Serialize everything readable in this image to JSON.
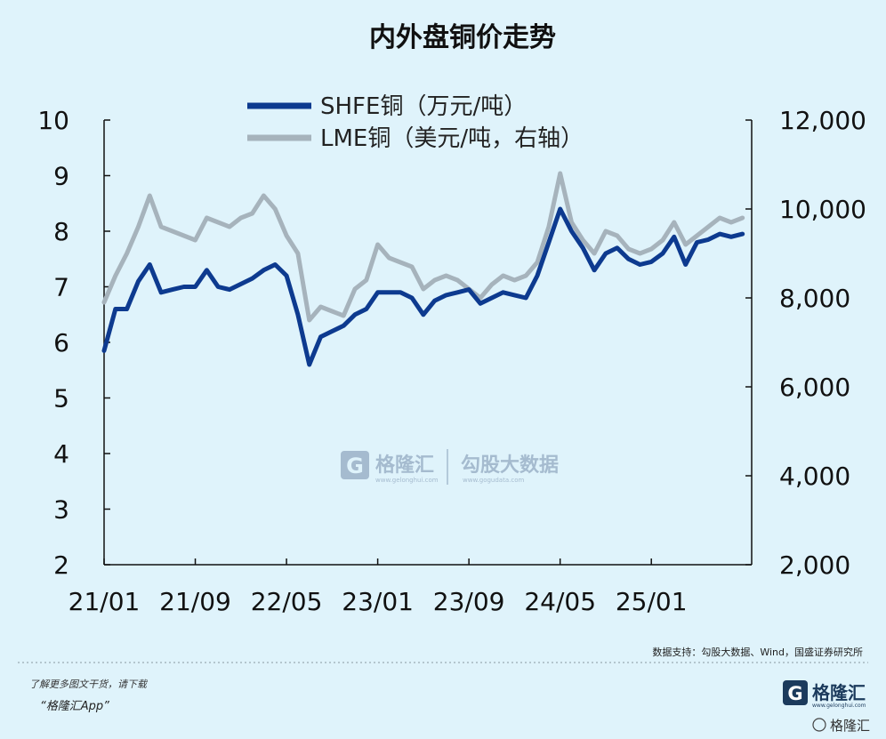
{
  "chart_data": {
    "type": "line",
    "title": "内外盘铜价走势",
    "x_ticks": [
      "21/01",
      "21/09",
      "22/05",
      "23/01",
      "23/09",
      "24/05",
      "25/01"
    ],
    "x_range": [
      "2021-01",
      "2025-09"
    ],
    "left_axis": {
      "ticks": [
        "2",
        "3",
        "4",
        "5",
        "6",
        "7",
        "8",
        "9",
        "10"
      ],
      "ylim": [
        2,
        10
      ]
    },
    "right_axis": {
      "ticks": [
        "2,000",
        "4,000",
        "6,000",
        "8,000",
        "10,000",
        "12,000"
      ],
      "ylim": [
        2000,
        12000
      ]
    },
    "legend_position": "top-center",
    "series": [
      {
        "name": "SHFE铜（万元/吨）",
        "axis": "left",
        "color": "#0d3a8f",
        "points": [
          [
            "2021-01",
            5.85
          ],
          [
            "2021-02",
            6.6
          ],
          [
            "2021-03",
            6.6
          ],
          [
            "2021-04",
            7.1
          ],
          [
            "2021-05",
            7.4
          ],
          [
            "2021-06",
            6.9
          ],
          [
            "2021-07",
            6.95
          ],
          [
            "2021-08",
            7.0
          ],
          [
            "2021-09",
            7.0
          ],
          [
            "2021-10",
            7.3
          ],
          [
            "2021-11",
            7.0
          ],
          [
            "2021-12",
            6.95
          ],
          [
            "2022-01",
            7.05
          ],
          [
            "2022-02",
            7.15
          ],
          [
            "2022-03",
            7.3
          ],
          [
            "2022-04",
            7.4
          ],
          [
            "2022-05",
            7.2
          ],
          [
            "2022-06",
            6.5
          ],
          [
            "2022-07",
            5.6
          ],
          [
            "2022-08",
            6.1
          ],
          [
            "2022-09",
            6.2
          ],
          [
            "2022-10",
            6.3
          ],
          [
            "2022-11",
            6.5
          ],
          [
            "2022-12",
            6.6
          ],
          [
            "2023-01",
            6.9
          ],
          [
            "2023-02",
            6.9
          ],
          [
            "2023-03",
            6.9
          ],
          [
            "2023-04",
            6.8
          ],
          [
            "2023-05",
            6.5
          ],
          [
            "2023-06",
            6.75
          ],
          [
            "2023-07",
            6.85
          ],
          [
            "2023-08",
            6.9
          ],
          [
            "2023-09",
            6.95
          ],
          [
            "2023-10",
            6.7
          ],
          [
            "2023-11",
            6.8
          ],
          [
            "2023-12",
            6.9
          ],
          [
            "2024-01",
            6.85
          ],
          [
            "2024-02",
            6.8
          ],
          [
            "2024-03",
            7.2
          ],
          [
            "2024-04",
            7.8
          ],
          [
            "2024-05",
            8.4
          ],
          [
            "2024-06",
            8.0
          ],
          [
            "2024-07",
            7.7
          ],
          [
            "2024-08",
            7.3
          ],
          [
            "2024-09",
            7.6
          ],
          [
            "2024-10",
            7.7
          ],
          [
            "2024-11",
            7.5
          ],
          [
            "2024-12",
            7.4
          ],
          [
            "2025-01",
            7.45
          ],
          [
            "2025-02",
            7.6
          ],
          [
            "2025-03",
            7.9
          ],
          [
            "2025-04",
            7.4
          ],
          [
            "2025-05",
            7.8
          ],
          [
            "2025-06",
            7.85
          ],
          [
            "2025-07",
            7.95
          ],
          [
            "2025-08",
            7.9
          ],
          [
            "2025-09",
            7.95
          ]
        ]
      },
      {
        "name": "LME铜（美元/吨，右轴）",
        "axis": "right",
        "color": "#a6b3bc",
        "points": [
          [
            "2021-01",
            7900
          ],
          [
            "2021-02",
            8500
          ],
          [
            "2021-03",
            9000
          ],
          [
            "2021-04",
            9600
          ],
          [
            "2021-05",
            10300
          ],
          [
            "2021-06",
            9600
          ],
          [
            "2021-07",
            9500
          ],
          [
            "2021-08",
            9400
          ],
          [
            "2021-09",
            9300
          ],
          [
            "2021-10",
            9800
          ],
          [
            "2021-11",
            9700
          ],
          [
            "2021-12",
            9600
          ],
          [
            "2022-01",
            9800
          ],
          [
            "2022-02",
            9900
          ],
          [
            "2022-03",
            10300
          ],
          [
            "2022-04",
            10000
          ],
          [
            "2022-05",
            9400
          ],
          [
            "2022-06",
            9000
          ],
          [
            "2022-07",
            7500
          ],
          [
            "2022-08",
            7800
          ],
          [
            "2022-09",
            7700
          ],
          [
            "2022-10",
            7600
          ],
          [
            "2022-11",
            8200
          ],
          [
            "2022-12",
            8400
          ],
          [
            "2023-01",
            9200
          ],
          [
            "2023-02",
            8900
          ],
          [
            "2023-03",
            8800
          ],
          [
            "2023-04",
            8700
          ],
          [
            "2023-05",
            8200
          ],
          [
            "2023-06",
            8400
          ],
          [
            "2023-07",
            8500
          ],
          [
            "2023-08",
            8400
          ],
          [
            "2023-09",
            8200
          ],
          [
            "2023-10",
            8000
          ],
          [
            "2023-11",
            8300
          ],
          [
            "2023-12",
            8500
          ],
          [
            "2024-01",
            8400
          ],
          [
            "2024-02",
            8500
          ],
          [
            "2024-03",
            8800
          ],
          [
            "2024-04",
            9600
          ],
          [
            "2024-05",
            10800
          ],
          [
            "2024-06",
            9700
          ],
          [
            "2024-07",
            9300
          ],
          [
            "2024-08",
            9000
          ],
          [
            "2024-09",
            9500
          ],
          [
            "2024-10",
            9400
          ],
          [
            "2024-11",
            9100
          ],
          [
            "2024-12",
            9000
          ],
          [
            "2025-01",
            9100
          ],
          [
            "2025-02",
            9300
          ],
          [
            "2025-03",
            9700
          ],
          [
            "2025-04",
            9200
          ],
          [
            "2025-05",
            9400
          ],
          [
            "2025-06",
            9600
          ],
          [
            "2025-07",
            9800
          ],
          [
            "2025-08",
            9700
          ],
          [
            "2025-09",
            9800
          ]
        ]
      }
    ]
  },
  "watermark": {
    "logo_letter": "G",
    "brand": "格隆汇",
    "brand_url": "www.gelonghui.com",
    "partner": "勾股大数据",
    "partner_url": "www.gogudata.com"
  },
  "source_note": "数据支持：勾股大数据、Wind，国盛证券研究所",
  "footer": {
    "note": "了解更多图文干货，请下载",
    "app": "“格隆汇App”",
    "brand_logo_letter": "G",
    "brand_name": "格隆汇",
    "brand_url": "www.gelonghui.com",
    "bottom_label": "格隆汇"
  },
  "colors": {
    "background": "#dff3fb",
    "shfe": "#0d3a8f",
    "lme": "#a6b3bc"
  }
}
